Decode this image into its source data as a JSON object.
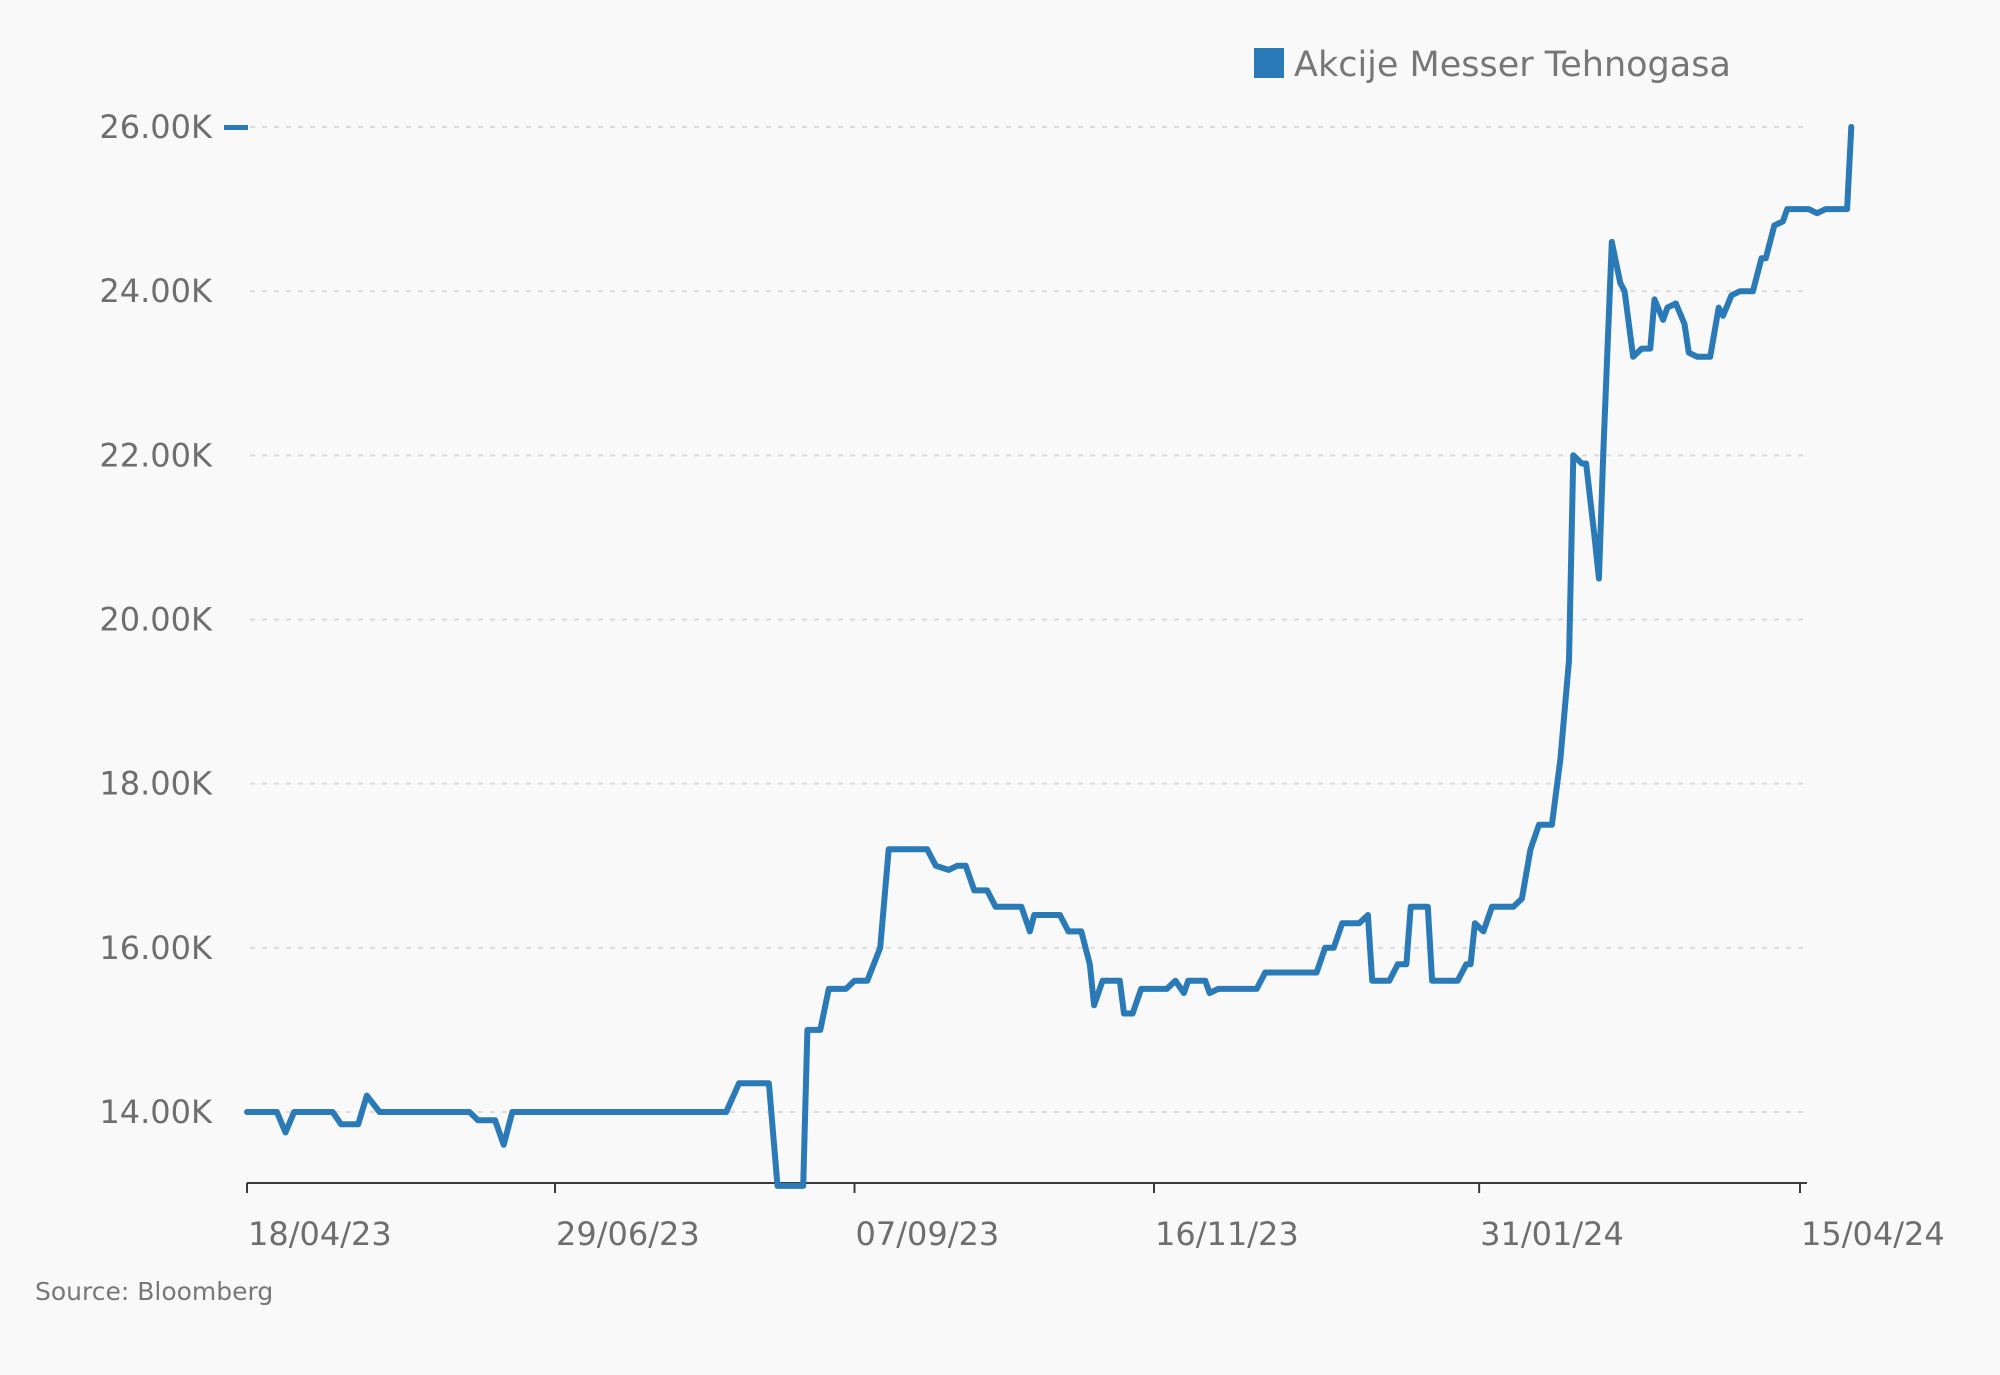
{
  "source": "Source: Bloomberg",
  "colors": {
    "series": "#2a7ab8",
    "grid": "#dcdcdc",
    "axis": "#3a3a3a",
    "text": "#6e6e6e",
    "background": "#f9f9f9"
  },
  "chart_data": {
    "type": "line",
    "ylim": [
      13100,
      26000
    ],
    "ytick_values": [
      14000,
      16000,
      18000,
      20000,
      22000,
      24000,
      26000
    ],
    "ytick_labels": [
      "14.00K",
      "16.00K",
      "18.00K",
      "20.00K",
      "22.00K",
      "24.00K",
      "26.00K"
    ],
    "xlim": [
      "2023-04-18",
      "2024-04-15"
    ],
    "xtick_values": [
      "2023-04-18",
      "2023-06-29",
      "2023-09-07",
      "2023-11-16",
      "2024-01-31",
      "2024-04-15"
    ],
    "xtick_labels": [
      "18/04/23",
      "29/06/23",
      "07/09/23",
      "16/11/23",
      "31/01/24",
      "15/04/24"
    ],
    "grid": true,
    "legend_position": "top-right",
    "series": [
      {
        "name": "Akcije Messer Tehnogasa",
        "points": [
          [
            "2023-04-18",
            14000
          ],
          [
            "2023-04-25",
            14000
          ],
          [
            "2023-04-27",
            13750
          ],
          [
            "2023-04-29",
            14000
          ],
          [
            "2023-05-05",
            14000
          ],
          [
            "2023-05-08",
            14000
          ],
          [
            "2023-05-10",
            13850
          ],
          [
            "2023-05-14",
            13850
          ],
          [
            "2023-05-16",
            14200
          ],
          [
            "2023-05-19",
            14000
          ],
          [
            "2023-05-25",
            14000
          ],
          [
            "2023-06-09",
            14000
          ],
          [
            "2023-06-11",
            13900
          ],
          [
            "2023-06-15",
            13900
          ],
          [
            "2023-06-17",
            13600
          ],
          [
            "2023-06-19",
            14000
          ],
          [
            "2023-07-01",
            14000
          ],
          [
            "2023-07-04",
            14000
          ],
          [
            "2023-07-08",
            14000
          ],
          [
            "2023-07-16",
            14000
          ],
          [
            "2023-07-25",
            14000
          ],
          [
            "2023-08-03",
            14000
          ],
          [
            "2023-08-08",
            14000
          ],
          [
            "2023-08-11",
            14350
          ],
          [
            "2023-08-18",
            14350
          ],
          [
            "2023-08-20",
            13100
          ],
          [
            "2023-08-26",
            13100
          ],
          [
            "2023-08-27",
            15000
          ],
          [
            "2023-08-30",
            15000
          ],
          [
            "2023-09-01",
            15500
          ],
          [
            "2023-09-05",
            15500
          ],
          [
            "2023-09-07",
            15600
          ],
          [
            "2023-09-10",
            15600
          ],
          [
            "2023-09-13",
            16000
          ],
          [
            "2023-09-15",
            17200
          ],
          [
            "2023-09-24",
            17200
          ],
          [
            "2023-09-26",
            17000
          ],
          [
            "2023-09-29",
            16950
          ],
          [
            "2023-10-01",
            17000
          ],
          [
            "2023-10-03",
            17000
          ],
          [
            "2023-10-05",
            16700
          ],
          [
            "2023-10-08",
            16700
          ],
          [
            "2023-10-10",
            16500
          ],
          [
            "2023-10-16",
            16500
          ],
          [
            "2023-10-18",
            16200
          ],
          [
            "2023-10-19",
            16400
          ],
          [
            "2023-10-25",
            16400
          ],
          [
            "2023-10-27",
            16200
          ],
          [
            "2023-10-30",
            16200
          ],
          [
            "2023-11-01",
            15800
          ],
          [
            "2023-11-02",
            15300
          ],
          [
            "2023-11-04",
            15600
          ],
          [
            "2023-11-08",
            15600
          ],
          [
            "2023-11-09",
            15200
          ],
          [
            "2023-11-11",
            15200
          ],
          [
            "2023-11-13",
            15500
          ],
          [
            "2023-11-19",
            15500
          ],
          [
            "2023-11-21",
            15600
          ],
          [
            "2023-11-23",
            15450
          ],
          [
            "2023-11-24",
            15600
          ],
          [
            "2023-11-28",
            15600
          ],
          [
            "2023-11-29",
            15450
          ],
          [
            "2023-12-01",
            15500
          ],
          [
            "2023-12-10",
            15500
          ],
          [
            "2023-12-12",
            15700
          ],
          [
            "2023-12-20",
            15700
          ],
          [
            "2023-12-24",
            15700
          ],
          [
            "2023-12-26",
            16000
          ],
          [
            "2023-12-28",
            16000
          ],
          [
            "2023-12-30",
            16300
          ],
          [
            "2024-01-03",
            16300
          ],
          [
            "2024-01-05",
            16400
          ],
          [
            "2024-01-06",
            15600
          ],
          [
            "2024-01-10",
            15600
          ],
          [
            "2024-01-12",
            15800
          ],
          [
            "2024-01-14",
            15800
          ],
          [
            "2024-01-15",
            16500
          ],
          [
            "2024-01-19",
            16500
          ],
          [
            "2024-01-20",
            15600
          ],
          [
            "2024-01-26",
            15600
          ],
          [
            "2024-01-28",
            15800
          ],
          [
            "2024-01-29",
            15800
          ],
          [
            "2024-01-30",
            16300
          ],
          [
            "2024-02-01",
            16200
          ],
          [
            "2024-02-03",
            16500
          ],
          [
            "2024-02-08",
            16500
          ],
          [
            "2024-02-10",
            16600
          ],
          [
            "2024-02-12",
            17200
          ],
          [
            "2024-02-14",
            17500
          ],
          [
            "2024-02-17",
            17500
          ],
          [
            "2024-02-19",
            18300
          ],
          [
            "2024-02-21",
            19500
          ],
          [
            "2024-02-22",
            22000
          ],
          [
            "2024-02-24",
            21900
          ],
          [
            "2024-02-25",
            21900
          ],
          [
            "2024-02-27",
            21000
          ],
          [
            "2024-02-28",
            20500
          ],
          [
            "2024-02-29",
            22000
          ],
          [
            "2024-03-02",
            24600
          ],
          [
            "2024-03-04",
            24100
          ],
          [
            "2024-03-05",
            24000
          ],
          [
            "2024-03-07",
            23200
          ],
          [
            "2024-03-09",
            23300
          ],
          [
            "2024-03-11",
            23300
          ],
          [
            "2024-03-12",
            23900
          ],
          [
            "2024-03-14",
            23650
          ],
          [
            "2024-03-15",
            23800
          ],
          [
            "2024-03-17",
            23850
          ],
          [
            "2024-03-19",
            23600
          ],
          [
            "2024-03-20",
            23250
          ],
          [
            "2024-03-22",
            23200
          ],
          [
            "2024-03-25",
            23200
          ],
          [
            "2024-03-27",
            23800
          ],
          [
            "2024-03-28",
            23700
          ],
          [
            "2024-03-30",
            23950
          ],
          [
            "2024-04-01",
            24000
          ],
          [
            "2024-04-04",
            24000
          ],
          [
            "2024-04-06",
            24400
          ],
          [
            "2024-04-07",
            24400
          ],
          [
            "2024-04-09",
            24800
          ],
          [
            "2024-04-11",
            24850
          ],
          [
            "2024-04-12",
            25000
          ],
          [
            "2024-04-17",
            25000
          ],
          [
            "2024-04-19",
            24950
          ],
          [
            "2024-04-21",
            25000
          ],
          [
            "2024-04-26",
            25000
          ],
          [
            "2024-04-27",
            26000
          ]
        ]
      }
    ]
  }
}
